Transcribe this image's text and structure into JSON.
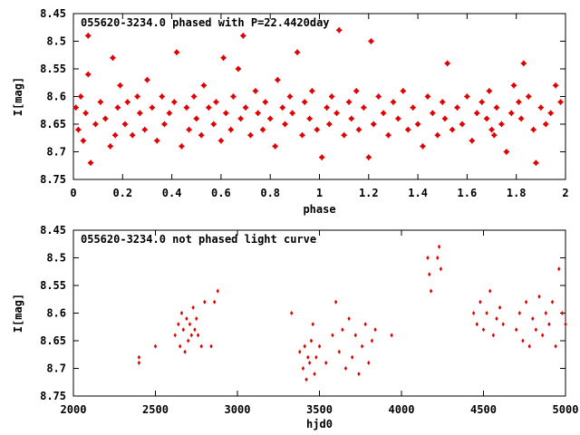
{
  "colors": {
    "points": "#e00000",
    "axes": "#000000",
    "background": "#ffffff"
  },
  "chart_data": [
    {
      "type": "scatter",
      "title": "055620-3234.0 phased with P=22.4420day",
      "xlabel": "phase",
      "ylabel": "I[mag]",
      "xlim": [
        0,
        2
      ],
      "ylim": [
        8.75,
        8.45
      ],
      "y_inverted": true,
      "grid": false,
      "x_ticks": [
        "0",
        "0.2",
        "0.4",
        "0.6",
        "0.8",
        "1",
        "1.2",
        "1.4",
        "1.6",
        "1.8",
        "2"
      ],
      "y_ticks": [
        "8.45",
        "8.5",
        "8.55",
        "8.6",
        "8.65",
        "8.7",
        "8.75"
      ],
      "series": [
        {
          "marker": "filled-star",
          "x": [
            0.01,
            0.02,
            0.03,
            0.04,
            0.05,
            0.06,
            0.06,
            0.07,
            0.09,
            0.11,
            0.13,
            0.15,
            0.16,
            0.17,
            0.18,
            0.19,
            0.21,
            0.22,
            0.24,
            0.26,
            0.27,
            0.29,
            0.3,
            0.32,
            0.34,
            0.36,
            0.37,
            0.39,
            0.41,
            0.42,
            0.44,
            0.46,
            0.47,
            0.49,
            0.5,
            0.52,
            0.53,
            0.55,
            0.57,
            0.58,
            0.6,
            0.61,
            0.62,
            0.64,
            0.65,
            0.67,
            0.68,
            0.69,
            0.7,
            0.72,
            0.74,
            0.75,
            0.77,
            0.78,
            0.8,
            0.82,
            0.83,
            0.85,
            0.86,
            0.88,
            0.89,
            0.91,
            0.93,
            0.94,
            0.96,
            0.97,
            0.99,
            1.01,
            1.03,
            1.04,
            1.05,
            1.07,
            1.08,
            1.1,
            1.12,
            1.13,
            1.15,
            1.16,
            1.18,
            1.2,
            1.21,
            1.22,
            1.24,
            1.26,
            1.28,
            1.3,
            1.32,
            1.34,
            1.36,
            1.38,
            1.4,
            1.42,
            1.44,
            1.46,
            1.48,
            1.5,
            1.51,
            1.52,
            1.54,
            1.56,
            1.58,
            1.6,
            1.62,
            1.64,
            1.66,
            1.68,
            1.69,
            1.7,
            1.71,
            1.72,
            1.74,
            1.76,
            1.78,
            1.79,
            1.81,
            1.82,
            1.83,
            1.85,
            1.87,
            1.88,
            1.9,
            1.92,
            1.94,
            1.96,
            1.98
          ],
          "y": [
            8.62,
            8.66,
            8.6,
            8.68,
            8.63,
            8.49,
            8.56,
            8.72,
            8.65,
            8.61,
            8.64,
            8.69,
            8.53,
            8.67,
            8.62,
            8.58,
            8.65,
            8.61,
            8.67,
            8.6,
            8.63,
            8.66,
            8.57,
            8.62,
            8.68,
            8.6,
            8.65,
            8.63,
            8.61,
            8.52,
            8.69,
            8.62,
            8.66,
            8.6,
            8.64,
            8.67,
            8.58,
            8.62,
            8.65,
            8.61,
            8.68,
            8.53,
            8.63,
            8.66,
            8.6,
            8.55,
            8.64,
            8.49,
            8.62,
            8.67,
            8.59,
            8.63,
            8.66,
            8.61,
            8.64,
            8.69,
            8.57,
            8.62,
            8.65,
            8.6,
            8.63,
            8.52,
            8.67,
            8.61,
            8.64,
            8.59,
            8.66,
            8.71,
            8.62,
            8.65,
            8.6,
            8.63,
            8.48,
            8.67,
            8.61,
            8.64,
            8.59,
            8.66,
            8.62,
            8.71,
            8.5,
            8.65,
            8.6,
            8.63,
            8.67,
            8.61,
            8.64,
            8.59,
            8.66,
            8.62,
            8.65,
            8.69,
            8.6,
            8.63,
            8.67,
            8.61,
            8.64,
            8.54,
            8.66,
            8.62,
            8.65,
            8.6,
            8.68,
            8.63,
            8.61,
            8.64,
            8.59,
            8.66,
            8.67,
            8.62,
            8.65,
            8.7,
            8.63,
            8.58,
            8.61,
            8.64,
            8.54,
            8.6,
            8.66,
            8.72,
            8.62,
            8.65,
            8.63,
            8.58,
            8.61
          ]
        }
      ]
    },
    {
      "type": "scatter",
      "title": "055620-3234.0 not phased light curve",
      "xlabel": "hjd0",
      "ylabel": "I[mag]",
      "xlim": [
        2000,
        5000
      ],
      "ylim": [
        8.75,
        8.45
      ],
      "y_inverted": true,
      "grid": false,
      "x_ticks": [
        "2000",
        "2500",
        "3000",
        "3500",
        "4000",
        "4500",
        "5000"
      ],
      "y_ticks": [
        "8.45",
        "8.5",
        "8.55",
        "8.6",
        "8.65",
        "8.7",
        "8.75"
      ],
      "series": [
        {
          "marker": "small-diamond",
          "x": [
            2400,
            2400,
            2500,
            2620,
            2640,
            2650,
            2660,
            2670,
            2680,
            2690,
            2700,
            2710,
            2720,
            2730,
            2740,
            2750,
            2760,
            2780,
            2800,
            2840,
            2860,
            2880,
            3330,
            3380,
            3400,
            3410,
            3420,
            3430,
            3440,
            3450,
            3460,
            3470,
            3480,
            3500,
            3540,
            3580,
            3600,
            3620,
            3640,
            3660,
            3680,
            3700,
            3720,
            3740,
            3760,
            3780,
            3800,
            3820,
            3840,
            3940,
            4160,
            4170,
            4180,
            4220,
            4230,
            4240,
            4440,
            4460,
            4480,
            4500,
            4520,
            4540,
            4560,
            4580,
            4600,
            4620,
            4700,
            4720,
            4740,
            4760,
            4780,
            4800,
            4820,
            4840,
            4860,
            4880,
            4900,
            4920,
            4940,
            4960,
            4980,
            5000
          ],
          "y": [
            8.68,
            8.69,
            8.66,
            8.64,
            8.62,
            8.66,
            8.6,
            8.63,
            8.67,
            8.61,
            8.65,
            8.62,
            8.64,
            8.59,
            8.63,
            8.61,
            8.64,
            8.66,
            8.58,
            8.66,
            8.58,
            8.56,
            8.6,
            8.67,
            8.7,
            8.66,
            8.72,
            8.68,
            8.69,
            8.65,
            8.62,
            8.71,
            8.68,
            8.66,
            8.69,
            8.64,
            8.58,
            8.67,
            8.63,
            8.7,
            8.61,
            8.68,
            8.64,
            8.71,
            8.66,
            8.62,
            8.69,
            8.65,
            8.63,
            8.64,
            8.5,
            8.53,
            8.56,
            8.5,
            8.48,
            8.52,
            8.6,
            8.62,
            8.58,
            8.63,
            8.6,
            8.56,
            8.64,
            8.61,
            8.59,
            8.62,
            8.63,
            8.6,
            8.65,
            8.58,
            8.66,
            8.61,
            8.63,
            8.57,
            8.64,
            8.6,
            8.62,
            8.58,
            8.66,
            8.52,
            8.6,
            8.62
          ]
        }
      ]
    }
  ]
}
